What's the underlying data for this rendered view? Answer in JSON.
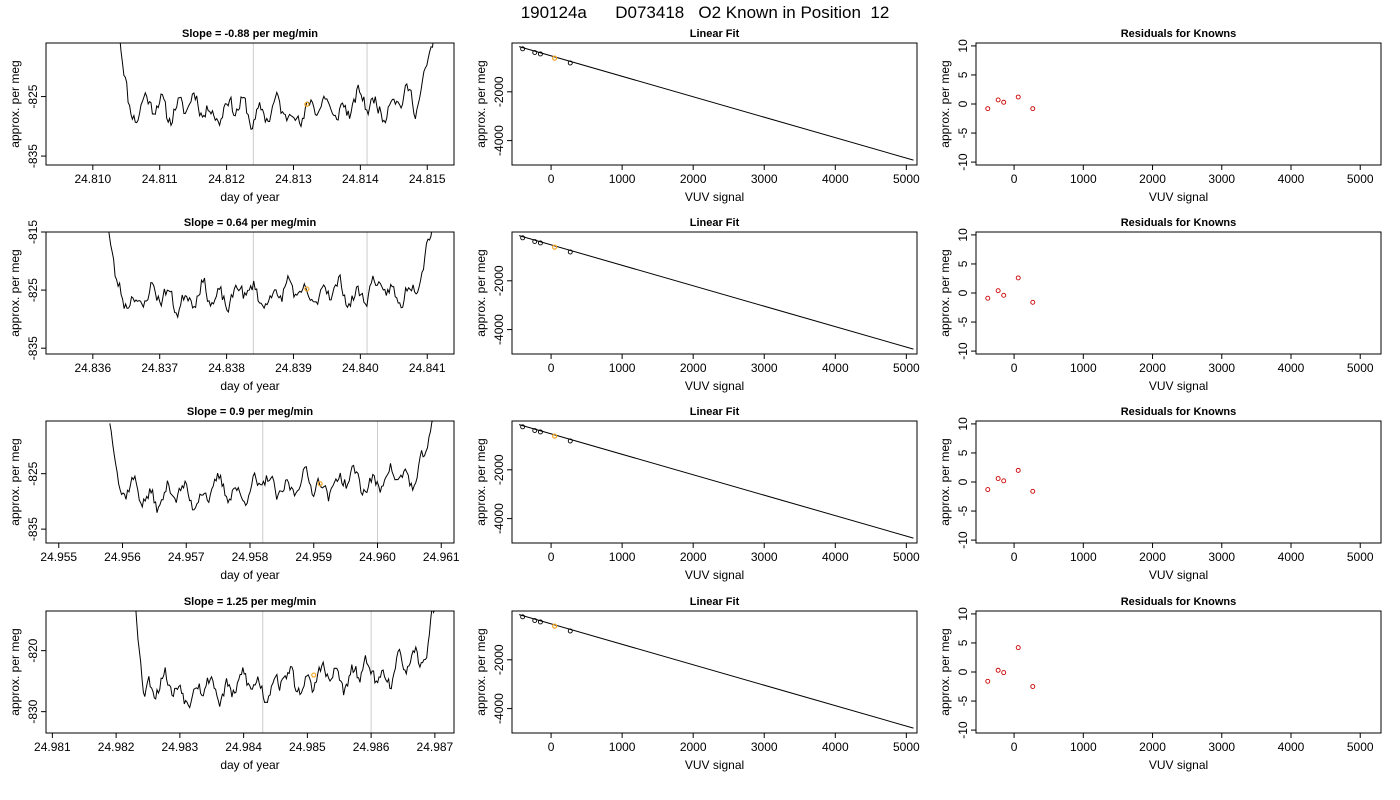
{
  "title": "190124a      D073418   O2 Known in Position  12",
  "colors": {
    "trace": "#000000",
    "marker": "#f5a623",
    "residual": "#cc0000",
    "cycle_line": "#cccccc",
    "axis": "#000000"
  },
  "chart_data": [
    {
      "type": "line",
      "row": 1,
      "col": 1,
      "title": "Slope =  -0.88  per meg/min",
      "xlabel": "day of year",
      "ylabel": "approx. per meg",
      "xlim": [
        24.8093,
        24.8154
      ],
      "ylim": [
        -836.5,
        -816.0
      ],
      "xticks": [
        24.81,
        24.811,
        24.812,
        24.813,
        24.814,
        24.815
      ],
      "xtick_labels": [
        "24.810",
        "24.811",
        "24.812",
        "24.813",
        "24.814",
        "24.815"
      ],
      "yticks": [
        -835,
        -825
      ],
      "ytick_labels": [
        "-835",
        "-825"
      ],
      "cycle_lines": [
        24.8124,
        24.8141
      ],
      "marker": {
        "x": 24.8132,
        "y": -826.3
      },
      "trace": {
        "x_start": 24.8104,
        "x_end": 24.8151,
        "center": -827.0,
        "seed": 11,
        "anchors": [
          [
            0,
            14
          ],
          [
            0.03,
            0
          ],
          [
            0.18,
            0.4
          ],
          [
            0.5,
            -0.8
          ],
          [
            0.82,
            0.8
          ],
          [
            0.94,
            1.2
          ],
          [
            0.97,
            5
          ],
          [
            1,
            14
          ]
        ]
      },
      "ticks_on_residual": false
    },
    {
      "type": "line",
      "row": 1,
      "col": 2,
      "title": "Linear Fit",
      "xlabel": "VUV signal",
      "ylabel": "approx. per meg",
      "xlim": [
        -550,
        5150
      ],
      "ylim": [
        -5000,
        0
      ],
      "xticks": [
        0,
        1000,
        2000,
        3000,
        4000,
        5000
      ],
      "xtick_labels": [
        "0",
        "1000",
        "2000",
        "3000",
        "4000",
        "5000"
      ],
      "yticks": [
        -4000,
        -2000
      ],
      "ytick_labels": [
        "-4000",
        "-2000"
      ],
      "fit_line": {
        "x": [
          -450,
          5100
        ],
        "y": [
          -150,
          -4800
        ]
      },
      "points": [
        {
          "x": -400,
          "y": -240
        },
        {
          "x": -230,
          "y": -390
        },
        {
          "x": -150,
          "y": -450
        },
        {
          "x": 270,
          "y": -820
        }
      ],
      "marker": {
        "x": 50,
        "y": -620
      }
    },
    {
      "type": "scatter",
      "row": 1,
      "col": 3,
      "title": "Residuals for Knowns",
      "xlabel": "VUV signal",
      "ylabel": "approx. per meg",
      "xlim": [
        -550,
        5300
      ],
      "ylim": [
        -10.5,
        10.5
      ],
      "xticks": [
        0,
        1000,
        2000,
        3000,
        4000,
        5000
      ],
      "xtick_labels": [
        "0",
        "1000",
        "2000",
        "3000",
        "4000",
        "5000"
      ],
      "yticks": [
        -10,
        -5,
        0,
        5,
        10
      ],
      "ytick_labels": [
        "-10",
        "-5",
        "0",
        "5",
        "10"
      ],
      "points": [
        {
          "x": -380,
          "y": -0.8
        },
        {
          "x": -230,
          "y": 0.7
        },
        {
          "x": -150,
          "y": 0.3
        },
        {
          "x": 60,
          "y": 1.2
        },
        {
          "x": 270,
          "y": -0.8
        }
      ]
    },
    {
      "type": "line",
      "row": 2,
      "col": 1,
      "title": "Slope =  0.64  per meg/min",
      "xlabel": "day of year",
      "ylabel": "approx. per meg",
      "xlim": [
        24.8353,
        24.8414
      ],
      "ylim": [
        -836.0,
        -815.0
      ],
      "xticks": [
        24.836,
        24.837,
        24.838,
        24.839,
        24.84,
        24.841
      ],
      "xtick_labels": [
        "24.836",
        "24.837",
        "24.838",
        "24.839",
        "24.840",
        "24.841"
      ],
      "yticks": [
        -835,
        -825,
        -815
      ],
      "ytick_labels": [
        "-835",
        "-825",
        "-815"
      ],
      "cycle_lines": [
        24.8384,
        24.8401
      ],
      "marker": {
        "x": 24.8392,
        "y": -824.8
      },
      "trace": {
        "x_start": 24.8362,
        "x_end": 24.8411,
        "center": -826.0,
        "seed": 23,
        "anchors": [
          [
            0,
            16
          ],
          [
            0.03,
            0
          ],
          [
            0.18,
            -0.4
          ],
          [
            0.5,
            0.3
          ],
          [
            0.8,
            0.6
          ],
          [
            0.93,
            0.8
          ],
          [
            0.97,
            4
          ],
          [
            1,
            15
          ]
        ]
      },
      "ticks_on_residual": false
    },
    {
      "type": "line",
      "row": 2,
      "col": 2,
      "title": "Linear Fit",
      "xlabel": "VUV signal",
      "ylabel": "approx. per meg",
      "xlim": [
        -550,
        5150
      ],
      "ylim": [
        -5000,
        0
      ],
      "xticks": [
        0,
        1000,
        2000,
        3000,
        4000,
        5000
      ],
      "xtick_labels": [
        "0",
        "1000",
        "2000",
        "3000",
        "4000",
        "5000"
      ],
      "yticks": [
        -4000,
        -2000
      ],
      "ytick_labels": [
        "-4000",
        "-2000"
      ],
      "fit_line": {
        "x": [
          -450,
          5100
        ],
        "y": [
          -150,
          -4800
        ]
      },
      "points": [
        {
          "x": -400,
          "y": -240
        },
        {
          "x": -230,
          "y": -390
        },
        {
          "x": -150,
          "y": -450
        },
        {
          "x": 270,
          "y": -820
        }
      ],
      "marker": {
        "x": 50,
        "y": -620
      }
    },
    {
      "type": "scatter",
      "row": 2,
      "col": 3,
      "title": "Residuals for Knowns",
      "xlabel": "VUV signal",
      "ylabel": "approx. per meg",
      "xlim": [
        -550,
        5300
      ],
      "ylim": [
        -10.5,
        10.5
      ],
      "xticks": [
        0,
        1000,
        2000,
        3000,
        4000,
        5000
      ],
      "xtick_labels": [
        "0",
        "1000",
        "2000",
        "3000",
        "4000",
        "5000"
      ],
      "yticks": [
        -10,
        -5,
        0,
        5,
        10
      ],
      "ytick_labels": [
        "-10",
        "-5",
        "0",
        "5",
        "10"
      ],
      "points": [
        {
          "x": -380,
          "y": -0.9
        },
        {
          "x": -230,
          "y": 0.4
        },
        {
          "x": -150,
          "y": -0.4
        },
        {
          "x": 60,
          "y": 2.6
        },
        {
          "x": 270,
          "y": -1.6
        }
      ]
    },
    {
      "type": "line",
      "row": 3,
      "col": 1,
      "title": "Slope =  0.9  per meg/min",
      "xlabel": "day of year",
      "ylabel": "approx. per meg",
      "xlim": [
        24.9548,
        24.9612
      ],
      "ylim": [
        -837.5,
        -815.5
      ],
      "xticks": [
        24.955,
        24.956,
        24.957,
        24.958,
        24.959,
        24.96,
        24.961
      ],
      "xtick_labels": [
        "24.955",
        "24.956",
        "24.957",
        "24.958",
        "24.959",
        "24.960",
        "24.961"
      ],
      "yticks": [
        -835,
        -825
      ],
      "ytick_labels": [
        "-835",
        "-825"
      ],
      "cycle_lines": [
        24.9582,
        24.96
      ],
      "marker": {
        "x": 24.9591,
        "y": -826.8
      },
      "trace": {
        "x_start": 24.9558,
        "x_end": 24.9609,
        "center": -828.0,
        "seed": 37,
        "anchors": [
          [
            0,
            14
          ],
          [
            0.03,
            0
          ],
          [
            0.15,
            -1.2
          ],
          [
            0.5,
            0.6
          ],
          [
            0.82,
            1.8
          ],
          [
            0.93,
            2.4
          ],
          [
            0.97,
            6
          ],
          [
            1,
            14
          ]
        ]
      },
      "ticks_on_residual": false
    },
    {
      "type": "line",
      "row": 3,
      "col": 2,
      "title": "Linear Fit",
      "xlabel": "VUV signal",
      "ylabel": "approx. per meg",
      "xlim": [
        -550,
        5150
      ],
      "ylim": [
        -5000,
        0
      ],
      "xticks": [
        0,
        1000,
        2000,
        3000,
        4000,
        5000
      ],
      "xtick_labels": [
        "0",
        "1000",
        "2000",
        "3000",
        "4000",
        "5000"
      ],
      "yticks": [
        -4000,
        -2000
      ],
      "ytick_labels": [
        "-4000",
        "-2000"
      ],
      "fit_line": {
        "x": [
          -450,
          5100
        ],
        "y": [
          -150,
          -4800
        ]
      },
      "points": [
        {
          "x": -400,
          "y": -240
        },
        {
          "x": -230,
          "y": -390
        },
        {
          "x": -150,
          "y": -450
        },
        {
          "x": 270,
          "y": -820
        }
      ],
      "marker": {
        "x": 50,
        "y": -620
      }
    },
    {
      "type": "scatter",
      "row": 3,
      "col": 3,
      "title": "Residuals for Knowns",
      "xlabel": "VUV signal",
      "ylabel": "approx. per meg",
      "xlim": [
        -550,
        5300
      ],
      "ylim": [
        -10.5,
        10.5
      ],
      "xticks": [
        0,
        1000,
        2000,
        3000,
        4000,
        5000
      ],
      "xtick_labels": [
        "0",
        "1000",
        "2000",
        "3000",
        "4000",
        "5000"
      ],
      "yticks": [
        -10,
        -5,
        0,
        5,
        10
      ],
      "ytick_labels": [
        "-10",
        "-5",
        "0",
        "5",
        "10"
      ],
      "points": [
        {
          "x": -380,
          "y": -1.3
        },
        {
          "x": -230,
          "y": 0.6
        },
        {
          "x": -150,
          "y": 0.2
        },
        {
          "x": 60,
          "y": 2.0
        },
        {
          "x": 270,
          "y": -1.6
        }
      ]
    },
    {
      "type": "line",
      "row": 4,
      "col": 1,
      "title": "Slope =  1.25  per meg/min",
      "xlabel": "day of year",
      "ylabel": "approx. per meg",
      "xlim": [
        24.9809,
        24.9873
      ],
      "ylim": [
        -833.5,
        -813.5
      ],
      "xticks": [
        24.981,
        24.982,
        24.983,
        24.984,
        24.985,
        24.986,
        24.987
      ],
      "xtick_labels": [
        "24.981",
        "24.982",
        "24.983",
        "24.984",
        "24.985",
        "24.986",
        "24.987"
      ],
      "yticks": [
        -830,
        -820
      ],
      "ytick_labels": [
        "-830",
        "-820"
      ],
      "cycle_lines": [
        24.9843,
        24.986
      ],
      "marker": {
        "x": 24.9851,
        "y": -824.0
      },
      "trace": {
        "x_start": 24.9823,
        "x_end": 24.987,
        "center": -825.5,
        "seed": 53,
        "anchors": [
          [
            0,
            14
          ],
          [
            0.03,
            0
          ],
          [
            0.2,
            -1.0
          ],
          [
            0.5,
            0.3
          ],
          [
            0.85,
            2.0
          ],
          [
            0.93,
            3.0
          ],
          [
            0.97,
            6
          ],
          [
            1,
            13
          ]
        ]
      },
      "ticks_on_residual": false
    },
    {
      "type": "line",
      "row": 4,
      "col": 2,
      "title": "Linear Fit",
      "xlabel": "VUV signal",
      "ylabel": "approx. per meg",
      "xlim": [
        -550,
        5150
      ],
      "ylim": [
        -5000,
        0
      ],
      "xticks": [
        0,
        1000,
        2000,
        3000,
        4000,
        5000
      ],
      "xtick_labels": [
        "0",
        "1000",
        "2000",
        "3000",
        "4000",
        "5000"
      ],
      "yticks": [
        -4000,
        -2000
      ],
      "ytick_labels": [
        "-4000",
        "-2000"
      ],
      "fit_line": {
        "x": [
          -450,
          5100
        ],
        "y": [
          -150,
          -4800
        ]
      },
      "points": [
        {
          "x": -400,
          "y": -240
        },
        {
          "x": -230,
          "y": -390
        },
        {
          "x": -150,
          "y": -450
        },
        {
          "x": 270,
          "y": -820
        }
      ],
      "marker": {
        "x": 50,
        "y": -620
      }
    },
    {
      "type": "scatter",
      "row": 4,
      "col": 3,
      "title": "Residuals for Knowns",
      "xlabel": "VUV signal",
      "ylabel": "approx. per meg",
      "xlim": [
        -550,
        5300
      ],
      "ylim": [
        -10.5,
        10.5
      ],
      "xticks": [
        0,
        1000,
        2000,
        3000,
        4000,
        5000
      ],
      "xtick_labels": [
        "0",
        "1000",
        "2000",
        "3000",
        "4000",
        "5000"
      ],
      "yticks": [
        -10,
        -5,
        0,
        5,
        10
      ],
      "ytick_labels": [
        "-10",
        "-5",
        "0",
        "5",
        "10"
      ],
      "points": [
        {
          "x": -380,
          "y": -1.6
        },
        {
          "x": -230,
          "y": 0.3
        },
        {
          "x": -150,
          "y": -0.1
        },
        {
          "x": 60,
          "y": 4.2
        },
        {
          "x": 270,
          "y": -2.5
        }
      ]
    }
  ]
}
